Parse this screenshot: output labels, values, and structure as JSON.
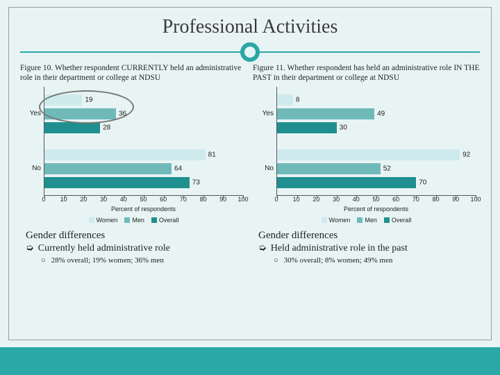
{
  "title": "Professional Activities",
  "colors": {
    "women": "#cfeaed",
    "men": "#6fb9b9",
    "overall": "#1f8f8f",
    "accent": "#2aa7a7",
    "background": "#e8f4f4",
    "axis": "#555555"
  },
  "legend": [
    "Women",
    "Men",
    "Overall"
  ],
  "x_axis": {
    "min": 0,
    "max": 100,
    "step": 10,
    "title": "Percent of respondents"
  },
  "charts": [
    {
      "caption": "Figure 10. Whether respondent CURRENTLY held an administrative role in their department or college at NDSU",
      "categories": [
        {
          "label": "Yes",
          "values": {
            "women": 19,
            "men": 36,
            "overall": 28
          }
        },
        {
          "label": "No",
          "values": {
            "women": 81,
            "men": 64,
            "overall": 73
          }
        }
      ],
      "highlight_ellipse": {
        "cat": 0,
        "series_span": [
          0,
          1
        ]
      }
    },
    {
      "caption": "Figure 11. Whether respondent has held an administrative role IN THE PAST in their department or college at NDSU",
      "categories": [
        {
          "label": "Yes",
          "values": {
            "women": 8,
            "men": 49,
            "overall": 30
          }
        },
        {
          "label": "No",
          "values": {
            "women": 92,
            "men": 52,
            "overall": 70
          }
        }
      ]
    }
  ],
  "summaries": [
    {
      "heading": "Gender differences",
      "bullet": "Currently held administrative role",
      "sub": "28% overall; 19% women; 36% men"
    },
    {
      "heading": "Gender differences",
      "bullet": "Held administrative role in the past",
      "sub": "30% overall; 8% women; 49% men"
    }
  ]
}
